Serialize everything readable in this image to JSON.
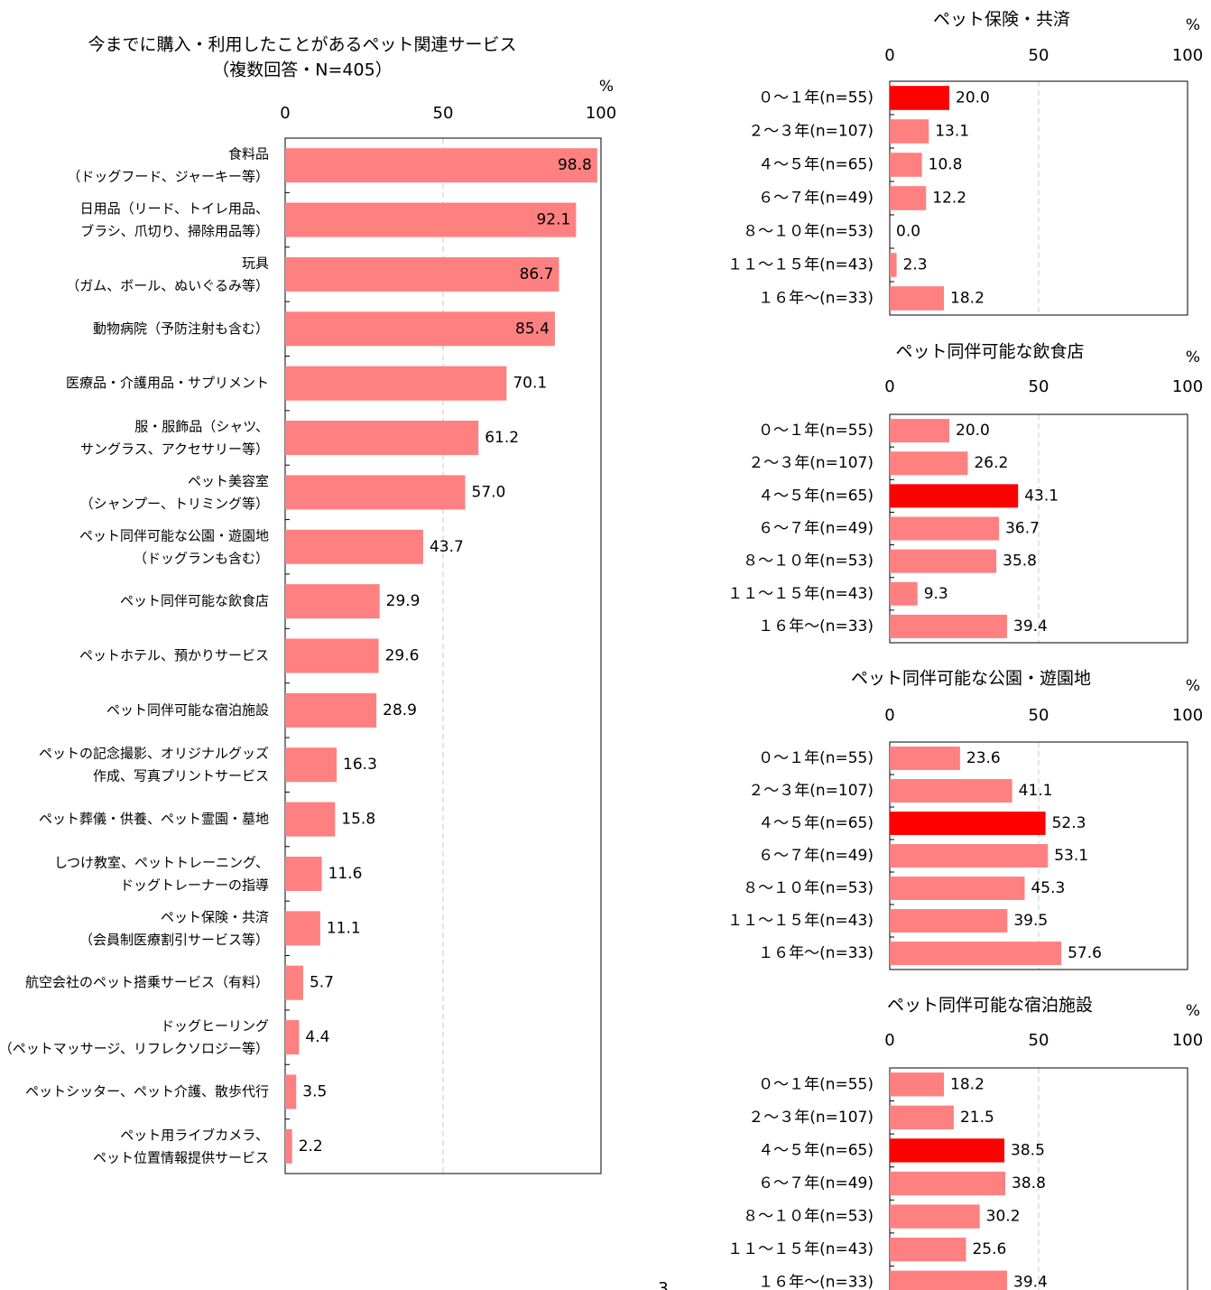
{
  "page_number": "3",
  "chart_data": [
    {
      "type": "barh",
      "title": "今までに購入・利用したことがあるペット関連サービス",
      "subtitle": "（複数回答・N=405）",
      "x_label": "%",
      "categories": [
        "食料品\n（ドッグフード、ジャーキー等）",
        "日用品（リード、トイレ用品、\nブラシ、爪切り、掃除用品等）",
        "玩具\n（ガム、ボール、ぬいぐるみ等）",
        "動物病院（予防注射も含む）",
        "医療品・介護用品・サプリメント",
        "服・服飾品（シャツ、\nサングラス、アクセサリー等）",
        "ペット美容室\n（シャンプー、トリミング等）",
        "ペット同伴可能な公園・遊園地\n（ドッグランも含む）",
        "ペット同伴可能な飲食店",
        "ペットホテル、預かりサービス",
        "ペット同伴可能な宿泊施設",
        "ペットの記念撮影、オリジナルグッズ\n作成、写真プリントサービス",
        "ペット葬儀・供養、ペット霊園・墓地",
        "しつけ教室、ペットトレーニング、\nドッグトレーナーの指導",
        "ペット保険・共済\n（会員制医療割引サービス等）",
        "航空会社のペット搭乗サービス（有料）",
        "ドッグヒーリング\n（ペットマッサージ、リフレクソロジー等）",
        "ペットシッター、ペット介護、散歩代行",
        "ペット用ライブカメラ、\nペット位置情報提供サービス"
      ],
      "values": [
        98.8,
        92.1,
        86.7,
        85.4,
        70.1,
        61.2,
        57.0,
        43.7,
        29.9,
        29.6,
        28.9,
        16.3,
        15.8,
        11.6,
        11.1,
        5.7,
        4.4,
        3.5,
        2.2
      ],
      "value_labels": [
        "98.8",
        "92.1",
        "86.7",
        "85.4",
        "70.1",
        "61.2",
        "57.0",
        "43.7",
        "29.9",
        "29.6",
        "28.9",
        "16.3",
        "15.8",
        "11.6",
        "11.1",
        "5.7",
        "4.4",
        "3.5",
        "2.2"
      ],
      "color": "#ff8080",
      "xlim": [
        0,
        100
      ],
      "xticks": [
        0,
        50,
        100
      ],
      "grid": true
    },
    {
      "type": "barh",
      "title": "ペット保険・共済",
      "x_label": "%",
      "categories": [
        "０～１年(n=55)",
        "２～３年(n=107)",
        "４～５年(n=65)",
        "６～７年(n=49)",
        "８～１０年(n=53)",
        "１１～１５年(n=43)",
        "１６年～(n=33)"
      ],
      "values": [
        20.0,
        13.1,
        10.8,
        12.2,
        0.0,
        2.3,
        18.2
      ],
      "value_labels": [
        "20.0",
        "13.1",
        "10.8",
        "12.2",
        "0.0",
        "2.3",
        "18.2"
      ],
      "colors": [
        "#ff0000",
        "#ff8080",
        "#ff8080",
        "#ff8080",
        "#ff8080",
        "#ff8080",
        "#ff8080"
      ],
      "xlim": [
        0,
        100
      ],
      "xticks": [
        0,
        50,
        100
      ],
      "grid": true
    },
    {
      "type": "barh",
      "title": "ペット同伴可能な飲食店",
      "x_label": "%",
      "categories": [
        "０～１年(n=55)",
        "２～３年(n=107)",
        "４～５年(n=65)",
        "６～７年(n=49)",
        "８～１０年(n=53)",
        "１１～１５年(n=43)",
        "１６年～(n=33)"
      ],
      "values": [
        20.0,
        26.2,
        43.1,
        36.7,
        35.8,
        9.3,
        39.4
      ],
      "value_labels": [
        "20.0",
        "26.2",
        "43.1",
        "36.7",
        "35.8",
        "9.3",
        "39.4"
      ],
      "colors": [
        "#ff8080",
        "#ff8080",
        "#ff0000",
        "#ff8080",
        "#ff8080",
        "#ff8080",
        "#ff8080"
      ],
      "xlim": [
        0,
        100
      ],
      "xticks": [
        0,
        50,
        100
      ],
      "grid": true
    },
    {
      "type": "barh",
      "title": "ペット同伴可能な公園・遊園地",
      "x_label": "%",
      "categories": [
        "０～１年(n=55)",
        "２～３年(n=107)",
        "４～５年(n=65)",
        "６～７年(n=49)",
        "８～１０年(n=53)",
        "１１～１５年(n=43)",
        "１６年～(n=33)"
      ],
      "values": [
        23.6,
        41.1,
        52.3,
        53.1,
        45.3,
        39.5,
        57.6
      ],
      "value_labels": [
        "23.6",
        "41.1",
        "52.3",
        "53.1",
        "45.3",
        "39.5",
        "57.6"
      ],
      "colors": [
        "#ff8080",
        "#ff8080",
        "#ff0000",
        "#ff8080",
        "#ff8080",
        "#ff8080",
        "#ff8080"
      ],
      "xlim": [
        0,
        100
      ],
      "xticks": [
        0,
        50,
        100
      ],
      "grid": true
    },
    {
      "type": "barh",
      "title": "ペット同伴可能な宿泊施設",
      "x_label": "%",
      "categories": [
        "０～１年(n=55)",
        "２～３年(n=107)",
        "４～５年(n=65)",
        "６～７年(n=49)",
        "８～１０年(n=53)",
        "１１～１５年(n=43)",
        "１６年～(n=33)"
      ],
      "values": [
        18.2,
        21.5,
        38.5,
        38.8,
        30.2,
        25.6,
        39.4
      ],
      "value_labels": [
        "18.2",
        "21.5",
        "38.5",
        "38.8",
        "30.2",
        "25.6",
        "39.4"
      ],
      "colors": [
        "#ff8080",
        "#ff8080",
        "#ff0000",
        "#ff8080",
        "#ff8080",
        "#ff8080",
        "#ff8080"
      ],
      "xlim": [
        0,
        100
      ],
      "xticks": [
        0,
        50,
        100
      ],
      "grid": true
    }
  ]
}
